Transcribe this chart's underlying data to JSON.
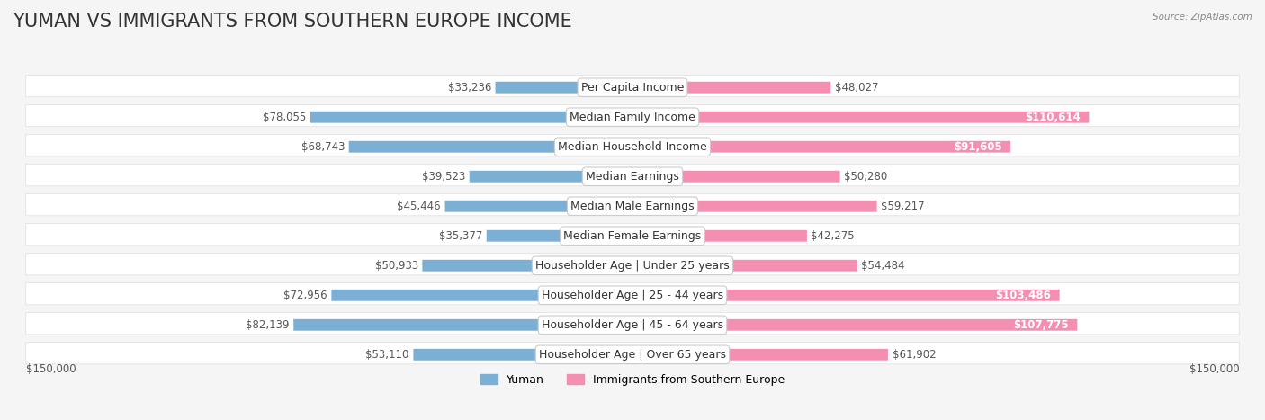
{
  "title": "YUMAN VS IMMIGRANTS FROM SOUTHERN EUROPE INCOME",
  "source": "Source: ZipAtlas.com",
  "categories": [
    "Per Capita Income",
    "Median Family Income",
    "Median Household Income",
    "Median Earnings",
    "Median Male Earnings",
    "Median Female Earnings",
    "Householder Age | Under 25 years",
    "Householder Age | 25 - 44 years",
    "Householder Age | 45 - 64 years",
    "Householder Age | Over 65 years"
  ],
  "yuman_values": [
    33236,
    78055,
    68743,
    39523,
    45446,
    35377,
    50933,
    72956,
    82139,
    53110
  ],
  "immigrant_values": [
    48027,
    110614,
    91605,
    50280,
    59217,
    42275,
    54484,
    103486,
    107775,
    61902
  ],
  "yuman_color": "#7bafd4",
  "immigrant_color": "#f48fb1",
  "yuman_label": "Yuman",
  "immigrant_label": "Immigrants from Southern Europe",
  "max_value": 150000,
  "background_color": "#f5f5f5",
  "row_bg_color": "#ffffff",
  "title_fontsize": 15,
  "label_fontsize": 9,
  "value_fontsize": 8.5,
  "axis_label_left": "$150,000",
  "axis_label_right": "$150,000"
}
